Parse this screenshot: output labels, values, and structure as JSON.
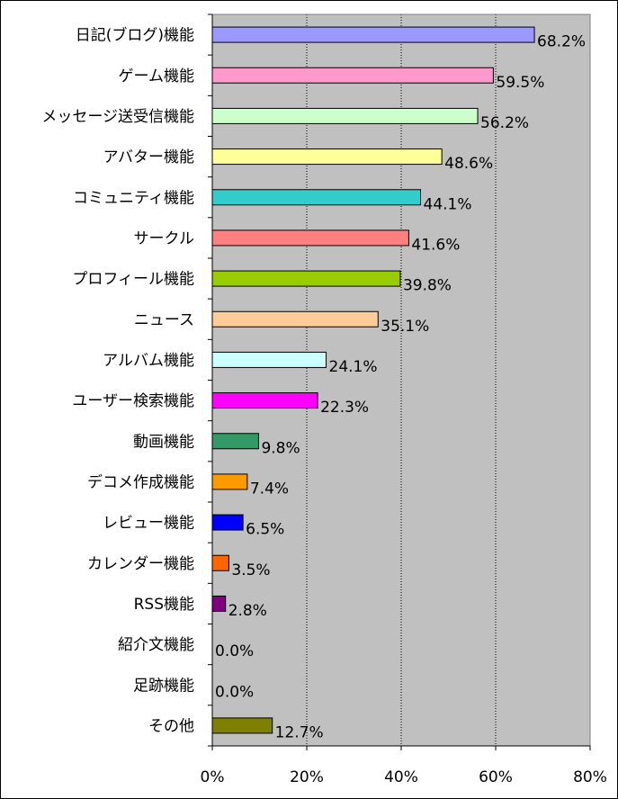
{
  "chart_data": {
    "type": "bar",
    "orientation": "horizontal",
    "categories": [
      "日記(ブログ)機能",
      "ゲーム機能",
      "メッセージ送受信機能",
      "アバター機能",
      "コミュニティ機能",
      "サークル",
      "プロフィール機能",
      "ニュース",
      "アルバム機能",
      "ユーザー検索機能",
      "動画機能",
      "デコメ作成機能",
      "レビュー機能",
      "カレンダー機能",
      "RSS機能",
      "紹介文機能",
      "足跡機能",
      "その他"
    ],
    "values": [
      68.2,
      59.5,
      56.2,
      48.6,
      44.1,
      41.6,
      39.8,
      35.1,
      24.1,
      22.3,
      9.8,
      7.4,
      6.5,
      3.5,
      2.8,
      0.0,
      0.0,
      12.7
    ],
    "value_labels": [
      "68.2%",
      "59.5%",
      "56.2%",
      "48.6%",
      "44.1%",
      "41.6%",
      "39.8%",
      "35.1%",
      "24.1%",
      "22.3%",
      "9.8%",
      "7.4%",
      "6.5%",
      "3.5%",
      "2.8%",
      "0.0%",
      "0.0%",
      "12.7%"
    ],
    "colors": [
      "#9999ff",
      "#ff99cc",
      "#ccffcc",
      "#ffff99",
      "#33cccc",
      "#ff8080",
      "#99cc00",
      "#ffcc99",
      "#ccffff",
      "#ff00ff",
      "#339966",
      "#ff9900",
      "#0000ff",
      "#ff6600",
      "#800080",
      "#cccccc",
      "#cccccc",
      "#808000"
    ],
    "xlim": [
      0,
      80
    ],
    "xticks": [
      0,
      20,
      40,
      60,
      80
    ],
    "xtick_labels": [
      "0%",
      "20%",
      "40%",
      "60%",
      "80%"
    ],
    "plot_background": "#c0c0c0",
    "grid": "vertical dotted",
    "title": "",
    "xlabel": "",
    "ylabel": ""
  }
}
